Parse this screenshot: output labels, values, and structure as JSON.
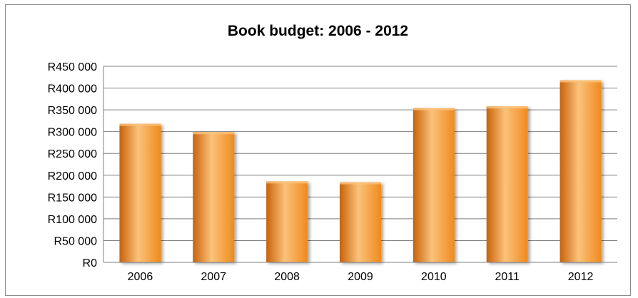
{
  "chart_data": {
    "type": "bar",
    "title": "Book budget: 2006 - 2012",
    "xlabel": "",
    "ylabel": "",
    "categories": [
      "2006",
      "2007",
      "2008",
      "2009",
      "2010",
      "2011",
      "2012"
    ],
    "values": [
      318000,
      299000,
      186000,
      184000,
      354000,
      358000,
      418000
    ],
    "ylim": [
      0,
      450000
    ],
    "yticks": [
      0,
      50000,
      100000,
      150000,
      200000,
      250000,
      300000,
      350000,
      400000,
      450000
    ],
    "ytick_labels": [
      "R0",
      "R50 000",
      "R100 000",
      "R150 000",
      "R200 000",
      "R250 000",
      "R300 000",
      "R350 000",
      "R400 000",
      "R450 000"
    ],
    "grid": true,
    "legend": "none",
    "colors": {
      "bar": "#f08a1c",
      "bar_light": "#fbc27a",
      "bar_dark": "#c8620a",
      "grid": "#7f7f7f"
    }
  }
}
